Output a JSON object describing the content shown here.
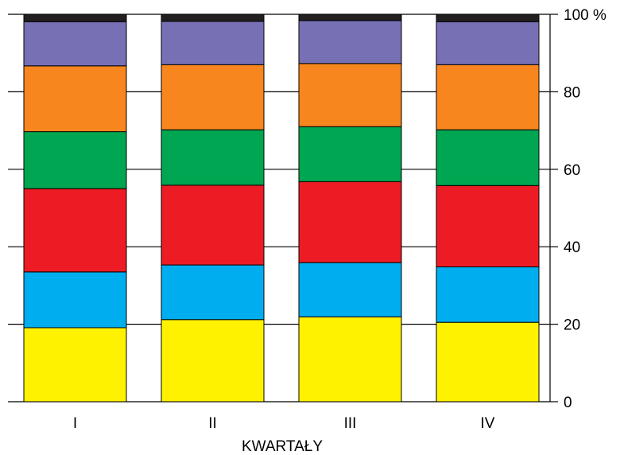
{
  "chart_data": {
    "type": "bar",
    "stacked": true,
    "categories": [
      "I",
      "II",
      "III",
      "IV"
    ],
    "series": [
      {
        "values": [
          19.1,
          21.2,
          21.9,
          20.5
        ],
        "color": "#fff200"
      },
      {
        "values": [
          14.4,
          14.1,
          14.0,
          14.3
        ],
        "color": "#00aeef"
      },
      {
        "values": [
          21.5,
          20.6,
          20.9,
          21.0
        ],
        "color": "#ed1c24"
      },
      {
        "values": [
          14.7,
          14.3,
          14.2,
          14.4
        ],
        "color": "#00a651"
      },
      {
        "values": [
          17.0,
          16.8,
          16.3,
          16.8
        ],
        "color": "#f7861e"
      },
      {
        "values": [
          11.4,
          11.2,
          11.1,
          11.1
        ],
        "color": "#7870b5"
      },
      {
        "values": [
          1.9,
          1.8,
          1.6,
          1.9
        ],
        "color": "#231f20"
      }
    ],
    "ylim": [
      0,
      100
    ],
    "yticks": [
      "0",
      "20",
      "40",
      "60",
      "80",
      "100 %"
    ],
    "ytick_values": [
      0,
      20,
      40,
      60,
      80,
      100
    ],
    "y_axis_side": "right",
    "grid": true,
    "xlabel": "KWARTAŁY",
    "ylabel": ""
  }
}
